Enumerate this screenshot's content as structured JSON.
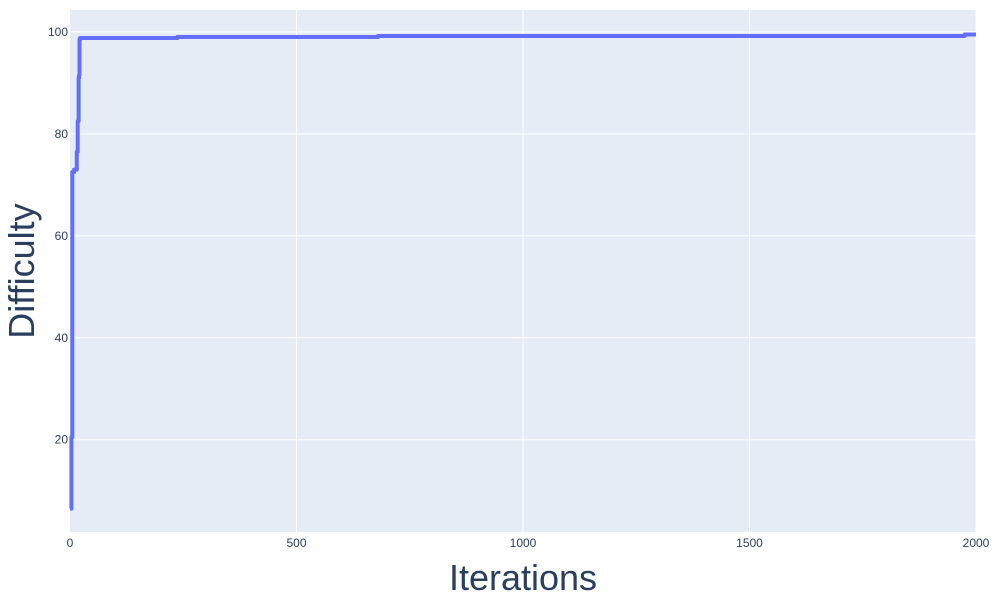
{
  "chart_data": {
    "type": "line",
    "title": "",
    "xlabel": "Iterations",
    "ylabel": "Difficulty",
    "xlim": [
      0,
      2000
    ],
    "ylim": [
      1.9,
      104.3
    ],
    "xticks": [
      0,
      500,
      1000,
      1500,
      2000
    ],
    "xtick_labels": [
      "0",
      "500",
      "1000",
      "1500",
      "2000"
    ],
    "yticks": [
      20,
      40,
      60,
      80,
      100
    ],
    "ytick_labels": [
      "20",
      "40",
      "60",
      "80",
      "100"
    ],
    "grid": true,
    "legend": "none",
    "series": [
      {
        "line_shape": "step",
        "x": [
          0,
          3,
          5,
          9,
          14,
          15,
          17,
          19,
          20,
          21,
          22,
          25,
          237,
          680,
          1945,
          1975,
          2000
        ],
        "y": [
          6.5,
          20.5,
          72.5,
          73.0,
          73.0,
          76.5,
          82.5,
          91.0,
          91.5,
          98.5,
          98.8,
          98.8,
          99.0,
          99.2,
          99.2,
          99.5,
          99.5
        ]
      }
    ]
  },
  "colors": {
    "plot_background": "#E5ECF6",
    "paper_background": "#FFFFFF",
    "grid": "#FFFFFF",
    "line": "#636EFA",
    "tick_text": "#2A3F5F",
    "title_text": "#2A3F5F"
  }
}
